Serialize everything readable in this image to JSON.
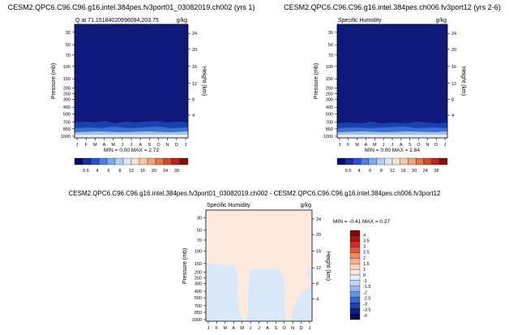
{
  "chart_data": [
    {
      "type": "heatmap",
      "title": "CESM2.QPC6.C96.C96.g16.intel.384pes.fv3port01_03082019.ch002 (yrs 1)",
      "subtitle_left": "Q at 71.15184020996094,203.75",
      "subtitle_right": "g/kg",
      "xlabel": "",
      "ylabel": "Pressure (mb)",
      "y2label": "Height (km)",
      "x_ticks": [
        "J",
        "F",
        "M",
        "A",
        "M",
        "J",
        "J",
        "A",
        "S",
        "O",
        "N",
        "D",
        "J"
      ],
      "y_ticks": [
        "30",
        "50",
        "70",
        "100",
        "150",
        "200",
        "250",
        "300",
        "400",
        "500",
        "700",
        "850",
        "1000"
      ],
      "y2_ticks": [
        "24",
        "20",
        "16",
        "12",
        "8",
        "4"
      ],
      "stats": "MIN =   0.00 MAX =   2.73",
      "colorbar_labels": [
        "0.5",
        "4",
        "6",
        "8",
        "12",
        "16",
        "20",
        "24",
        "28"
      ],
      "colorbar_colors": [
        "#0a0a70",
        "#1a2bb0",
        "#2b50d8",
        "#4d7ee8",
        "#7ea8f2",
        "#b2cdf7",
        "#dbe7f8",
        "#f6e1cf",
        "#f7c7a6",
        "#f3a178",
        "#e8754c",
        "#d9472a",
        "#c0211a",
        "#900c0c"
      ],
      "min": 0.0,
      "max": 2.73
    },
    {
      "type": "heatmap",
      "title": "CESM2.QPC6.C96.C96.g16.intel.384pes.ch006.fv3port12 (yrs 2-6)",
      "subtitle_left": "Specific Humidity",
      "subtitle_right": "g/kg",
      "xlabel": "",
      "ylabel": "Pressure (mb)",
      "y2label": "Height (km)",
      "x_ticks": [
        "J",
        "F",
        "M",
        "A",
        "M",
        "J",
        "J",
        "A",
        "S",
        "O",
        "N",
        "D",
        "J"
      ],
      "y_ticks": [
        "30",
        "50",
        "70",
        "100",
        "150",
        "200",
        "250",
        "300",
        "400",
        "500",
        "700",
        "850",
        "1000"
      ],
      "y2_ticks": [
        "24",
        "20",
        "16",
        "12",
        "8",
        "4"
      ],
      "stats": "MIN =   0.00 MAX =   2.64",
      "colorbar_labels": [
        "0.5",
        "4",
        "6",
        "8",
        "12",
        "16",
        "20",
        "24",
        "28"
      ],
      "colorbar_colors": [
        "#0a0a70",
        "#1a2bb0",
        "#2b50d8",
        "#4d7ee8",
        "#7ea8f2",
        "#b2cdf7",
        "#dbe7f8",
        "#f6e1cf",
        "#f7c7a6",
        "#f3a178",
        "#e8754c",
        "#d9472a",
        "#c0211a",
        "#900c0c"
      ],
      "min": 0.0,
      "max": 2.64
    },
    {
      "type": "heatmap",
      "title": "CESM2.QPC6.C96.C96.g16.intel.384pes.fv3port01_03082019.ch002 - CESM2.QPC6.C96.C96.g16.intel.384pes.ch006.fv3port12",
      "subtitle_left": "Specific Humidity",
      "subtitle_right": "g/kg",
      "xlabel": "",
      "ylabel": "Pressure (mb)",
      "y2label": "Height (km)",
      "x_ticks": [
        "J",
        "F",
        "M",
        "A",
        "M",
        "J",
        "J",
        "A",
        "S",
        "O",
        "N",
        "D",
        "J"
      ],
      "y_ticks": [
        "30",
        "50",
        "70",
        "100",
        "150",
        "200",
        "250",
        "300",
        "400",
        "500",
        "700",
        "850",
        "1000"
      ],
      "y2_ticks": [
        "24",
        "20",
        "16",
        "12",
        "8",
        "4"
      ],
      "stats": "MIN =  -0.41 MAX =   0.27",
      "colorbar_labels": [
        "4",
        "3.5",
        "3",
        "2.5",
        "2",
        "1.5",
        "1",
        "0",
        "-1",
        "-1.5",
        "-2",
        "-2.5",
        "-3",
        "-3.5",
        "-4"
      ],
      "colorbar_colors": [
        "#7a0c0c",
        "#a81616",
        "#cf2e22",
        "#e4583a",
        "#f28a62",
        "#f7b290",
        "#fbd6bd",
        "#fdeadd",
        "#e6eefa",
        "#c4d6f4",
        "#96b6ec",
        "#6a90e0",
        "#3f66d0",
        "#2240b0",
        "#121f80",
        "#0a0a5a"
      ],
      "min": -0.41,
      "max": 0.27
    }
  ]
}
